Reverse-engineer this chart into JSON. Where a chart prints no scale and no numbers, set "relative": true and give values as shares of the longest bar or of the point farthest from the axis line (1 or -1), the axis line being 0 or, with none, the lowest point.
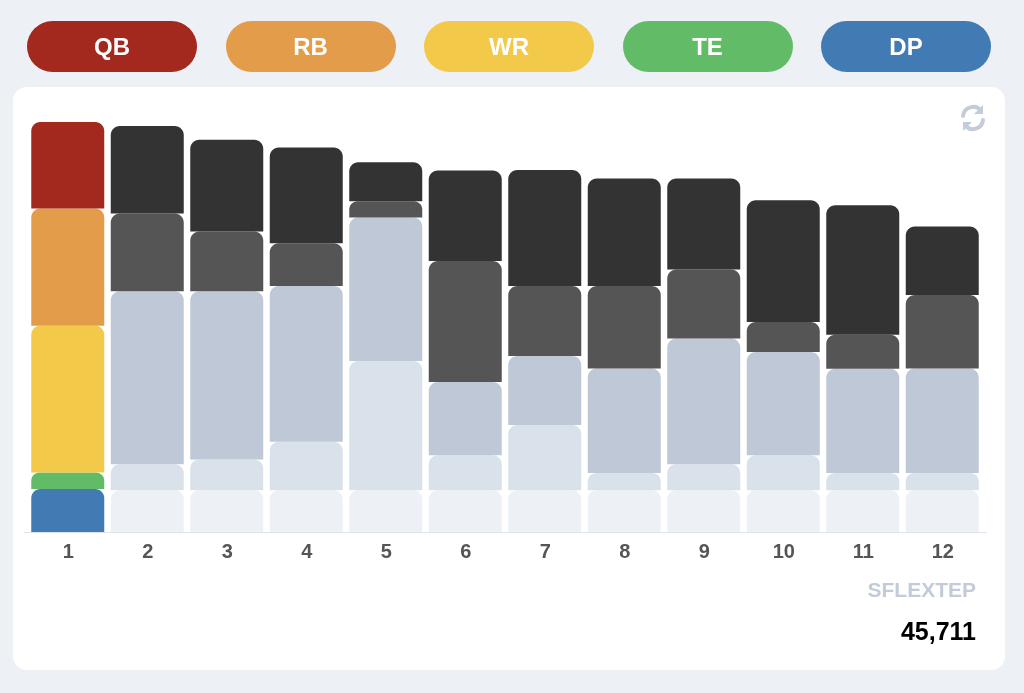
{
  "chart_data": {
    "type": "bar",
    "stacked": true,
    "relative": true,
    "legend": "top",
    "x": [
      1,
      2,
      3,
      4,
      5,
      6,
      7,
      8,
      9,
      10,
      11,
      12
    ],
    "xlim": [
      0.5,
      12.5
    ],
    "xticks": [
      1,
      2,
      3,
      4,
      5,
      6,
      7,
      8,
      9,
      10,
      11,
      12
    ],
    "series": [
      {
        "name": "DP",
        "color": "#427ab3",
        "colors": [
          "#427ab3",
          "#edf1f6",
          "#edf1f6",
          "#edf1f6",
          "#edf1f6",
          "#edf1f6",
          "#edf1f6",
          "#edf1f6",
          "#edf1f6",
          "#edf1f6",
          "#edf1f6",
          "#edf1f6"
        ],
        "values": [
          0.105,
          0.102,
          0.102,
          0.102,
          0.102,
          0.102,
          0.102,
          0.102,
          0.102,
          0.102,
          0.102,
          0.102
        ]
      },
      {
        "name": "TE",
        "color": "#62bc67",
        "colors": [
          "#62bc67",
          "#d9e1ea",
          "#d9e1ea",
          "#d9e1ea",
          "#d9e1ea",
          "#d9e1ea",
          "#d9e1ea",
          "#d9e1ea",
          "#d9e1ea",
          "#d9e1ea",
          "#d9e1ea",
          "#d9e1ea"
        ],
        "values": [
          0.04,
          0.063,
          0.075,
          0.118,
          0.315,
          0.085,
          0.159,
          0.042,
          0.063,
          0.085,
          0.042,
          0.042
        ]
      },
      {
        "name": "WR",
        "color": "#f3c94a",
        "colors": [
          "#f3c94a",
          "#bec8d6",
          "#bec8d6",
          "#bec8d6",
          "#bec8d6",
          "#bec8d6",
          "#bec8d6",
          "#bec8d6",
          "#bec8d6",
          "#bec8d6",
          "#bec8d6",
          "#bec8d6"
        ],
        "values": [
          0.358,
          0.422,
          0.41,
          0.38,
          0.35,
          0.179,
          0.168,
          0.255,
          0.307,
          0.252,
          0.254,
          0.255
        ]
      },
      {
        "name": "RB",
        "color": "#e39c4a",
        "colors": [
          "#e39c4a",
          "#555555",
          "#555555",
          "#555555",
          "#555555",
          "#555555",
          "#555555",
          "#555555",
          "#555555",
          "#555555",
          "#555555",
          "#555555"
        ],
        "values": [
          0.286,
          0.19,
          0.146,
          0.104,
          0.04,
          0.295,
          0.171,
          0.201,
          0.168,
          0.073,
          0.083,
          0.179
        ]
      },
      {
        "name": "QB",
        "color": "#a3281e",
        "colors": [
          "#a3281e",
          "#333333",
          "#333333",
          "#333333",
          "#333333",
          "#333333",
          "#333333",
          "#333333",
          "#333333",
          "#333333",
          "#333333",
          "#333333"
        ],
        "values": [
          0.211,
          0.213,
          0.224,
          0.234,
          0.095,
          0.221,
          0.283,
          0.262,
          0.222,
          0.297,
          0.316,
          0.167
        ]
      }
    ],
    "annotations": [
      "SFLEXTEP",
      "45,711"
    ]
  }
}
